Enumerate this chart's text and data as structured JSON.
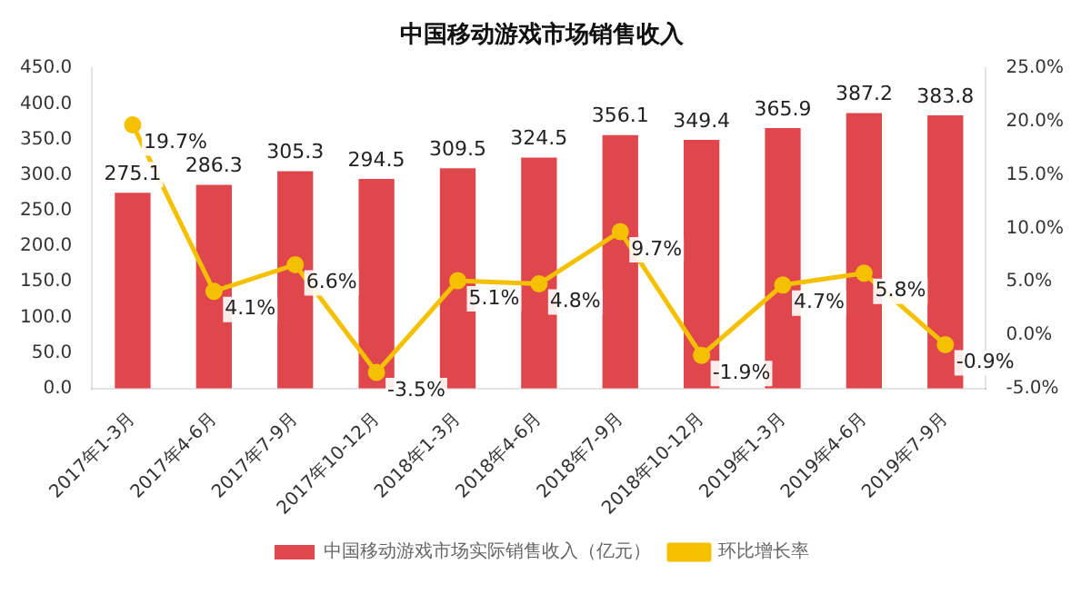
{
  "chart_data": {
    "type": "bar",
    "title": "中国移动游戏市场销售收入",
    "categories": [
      "2017年1-3月",
      "2017年4-6月",
      "2017年7-9月",
      "2017年10-12月",
      "2018年1-3月",
      "2018年4-6月",
      "2018年7-9月",
      "2018年10-12月",
      "2019年1-3月",
      "2019年4-6月",
      "2019年7-9月"
    ],
    "series": [
      {
        "name": "中国移动游戏市场实际销售收入（亿元）",
        "color": "#e0474c",
        "values": [
          275.1,
          286.3,
          305.3,
          294.5,
          309.5,
          324.5,
          356.1,
          349.4,
          365.9,
          387.2,
          383.8
        ],
        "value_labels": [
          "275.1",
          "286.3",
          "305.3",
          "294.5",
          "309.5",
          "324.5",
          "356.1",
          "349.4",
          "365.9",
          "387.2",
          "383.8"
        ]
      },
      {
        "name": "环比增长率",
        "type": "line",
        "axis": "y2",
        "color": "#f5c000",
        "marker": "circle",
        "values": [
          19.7,
          4.1,
          6.6,
          -3.5,
          5.1,
          4.8,
          9.7,
          -1.9,
          4.7,
          5.8,
          -0.9
        ],
        "value_labels": [
          "19.7%",
          "4.1%",
          "6.6%",
          "-3.5%",
          "5.1%",
          "4.8%",
          "9.7%",
          "-1.9%",
          "4.7%",
          "5.8%",
          "-0.9%"
        ]
      }
    ],
    "ylim": [
      0,
      450
    ],
    "yticks": [
      {
        "value": 0,
        "label": "0.0"
      },
      {
        "value": 50,
        "label": "50.0"
      },
      {
        "value": 100,
        "label": "100.0"
      },
      {
        "value": 150,
        "label": "150.0"
      },
      {
        "value": 200,
        "label": "200.0"
      },
      {
        "value": 250,
        "label": "250.0"
      },
      {
        "value": 300,
        "label": "300.0"
      },
      {
        "value": 350,
        "label": "350.0"
      },
      {
        "value": 400,
        "label": "400.0"
      },
      {
        "value": 450,
        "label": "450.0"
      }
    ],
    "y2lim": [
      -5,
      25
    ],
    "y2ticks": [
      {
        "value": -5,
        "label": "-5.0%"
      },
      {
        "value": 0,
        "label": "0.0%"
      },
      {
        "value": 5,
        "label": "5.0%"
      },
      {
        "value": 10,
        "label": "10.0%"
      },
      {
        "value": 15,
        "label": "15.0%"
      },
      {
        "value": 20,
        "label": "20.0%"
      },
      {
        "value": 25,
        "label": "25.0%"
      }
    ],
    "legend": "bottom"
  }
}
